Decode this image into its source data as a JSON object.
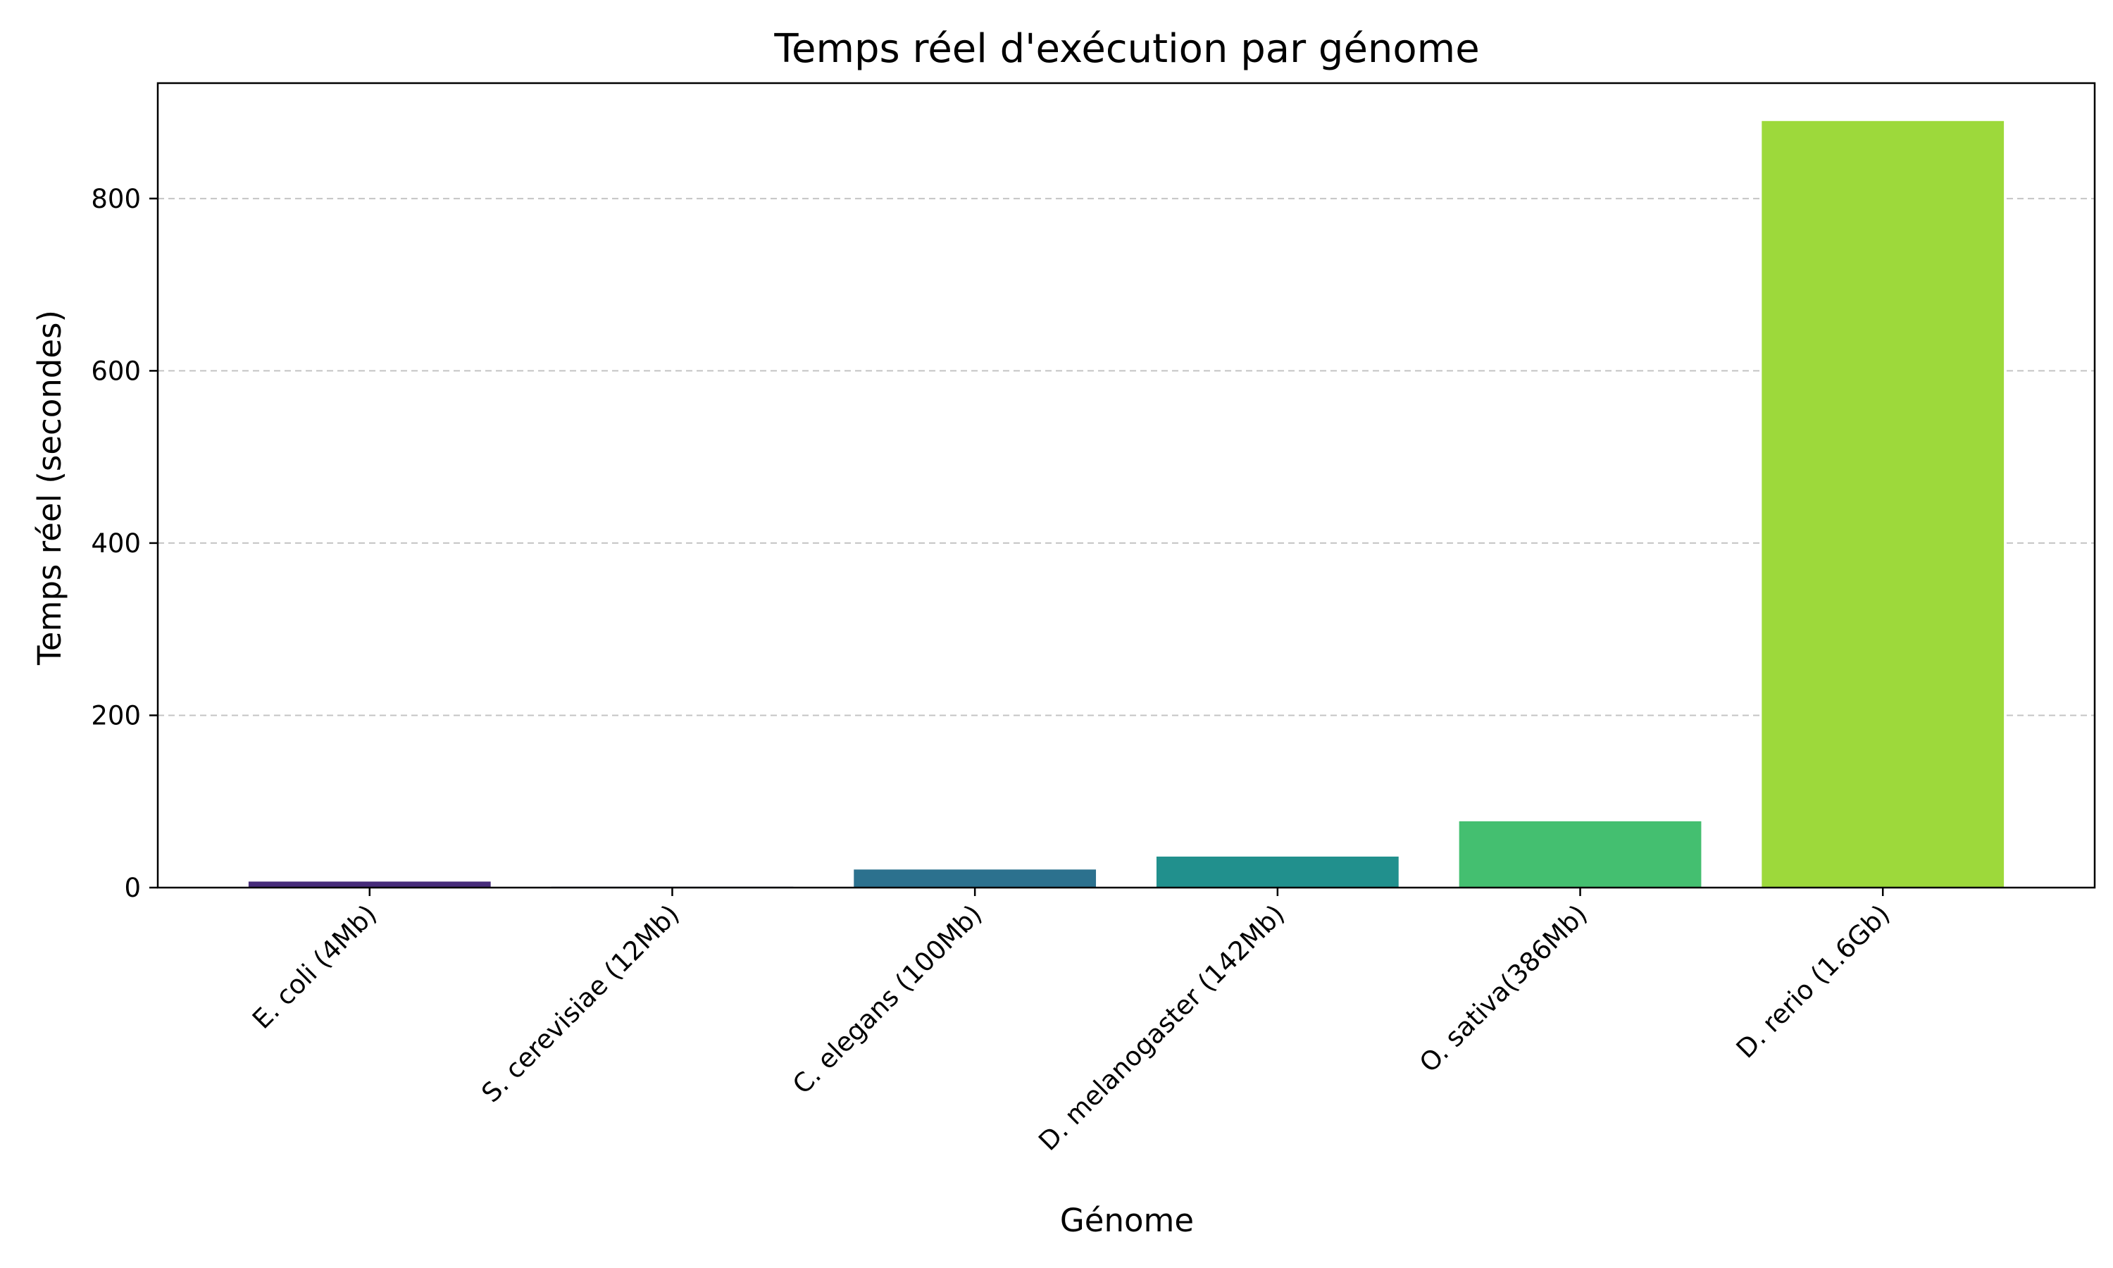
{
  "chart_data": {
    "type": "bar",
    "title": "Temps réel d'exécution par génome",
    "xlabel": "Génome",
    "ylabel": "Temps réel (secondes)",
    "categories": [
      "E. coli (4Mb)",
      "S. cerevisiae (12Mb)",
      "C. elegans (100Mb)",
      "D. melanogaster (142Mb)",
      "O. sativa(386Mb)",
      "D. rerio (1.6Gb)"
    ],
    "values": [
      7,
      1,
      21,
      36,
      77,
      890
    ],
    "ylim": [
      0,
      934
    ],
    "yticks": [
      0,
      200,
      400,
      600,
      800
    ],
    "ytick_labels": [
      "0",
      "200",
      "400",
      "600",
      "800"
    ],
    "grid": "y-dashed",
    "legend": "none",
    "colors": [
      "#472c7a",
      "#3b518b",
      "#2c718e",
      "#21908d",
      "#44bf70",
      "#9dd93b"
    ]
  }
}
